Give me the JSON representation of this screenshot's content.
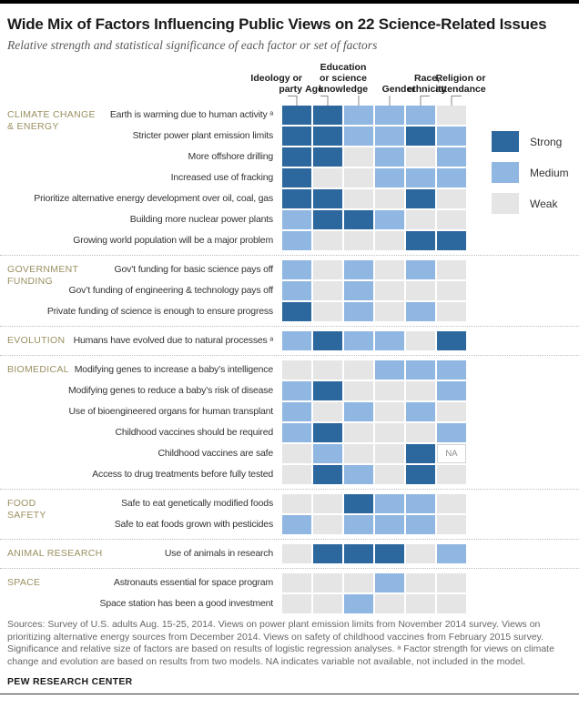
{
  "page": {
    "title": "Wide Mix of Factors Influencing Public Views on 22 Science-Related Issues",
    "subtitle": "Relative strength and statistical significance of each factor or set of factors"
  },
  "colors": {
    "strong": "#2C679E",
    "medium": "#90B6E2",
    "weak": "#E5E5E5",
    "na_bg": "#FFFFFF",
    "na_border": "#D2D2D2",
    "na_text": "#8A8A8A",
    "section_label": "#9A9060"
  },
  "legend": {
    "items": [
      {
        "label": "Strong",
        "color": "#2C679E"
      },
      {
        "label": "Medium",
        "color": "#90B6E2"
      },
      {
        "label": "Weak",
        "color": "#E5E5E5"
      }
    ]
  },
  "chart_data": {
    "type": "heatmap",
    "title": "Wide Mix of Factors Influencing Public Views on 22 Science-Related Issues",
    "subtitle": "Relative strength and statistical significance of each factor or set of factors",
    "scale": [
      "Strong",
      "Medium",
      "Weak",
      "NA"
    ],
    "columns": [
      {
        "label": "Ideology or party",
        "lines": [
          "Ideology or",
          "party"
        ]
      },
      {
        "label": "Age",
        "lines": [
          "Age"
        ]
      },
      {
        "label": "Education or science knowledge",
        "lines": [
          "Education",
          "or science",
          "knowledge"
        ]
      },
      {
        "label": "Gender",
        "lines": [
          "Gender"
        ]
      },
      {
        "label": "Race, ethnicity",
        "lines": [
          "Race,",
          "ethnicity"
        ]
      },
      {
        "label": "Religion or attendance",
        "lines": [
          "Religion or",
          "attendance"
        ]
      }
    ],
    "sections": [
      {
        "label": "CLIMATE CHANGE & ENERGY",
        "label_lines": [
          "CLIMATE CHANGE",
          "& ENERGY"
        ],
        "rows": [
          {
            "label": "Earth is warming due to human activity ᵃ",
            "values": [
              "Strong",
              "Strong",
              "Medium",
              "Medium",
              "Medium",
              "Weak"
            ]
          },
          {
            "label": "Stricter power plant emission limits",
            "values": [
              "Strong",
              "Strong",
              "Medium",
              "Medium",
              "Strong",
              "Medium"
            ]
          },
          {
            "label": "More offshore drilling",
            "values": [
              "Strong",
              "Strong",
              "Weak",
              "Medium",
              "Weak",
              "Medium"
            ]
          },
          {
            "label": "Increased use of fracking",
            "values": [
              "Strong",
              "Weak",
              "Weak",
              "Medium",
              "Medium",
              "Medium"
            ]
          },
          {
            "label": "Prioritize alternative energy development over oil, coal, gas",
            "values": [
              "Strong",
              "Strong",
              "Weak",
              "Weak",
              "Strong",
              "Weak"
            ]
          },
          {
            "label": "Building more nuclear power plants",
            "values": [
              "Medium",
              "Strong",
              "Strong",
              "Medium",
              "Weak",
              "Weak"
            ]
          },
          {
            "label": "Growing world population will be a major problem",
            "values": [
              "Medium",
              "Weak",
              "Weak",
              "Weak",
              "Strong",
              "Strong"
            ]
          }
        ]
      },
      {
        "label": "GOVERNMENT FUNDING",
        "label_lines": [
          "GOVERNMENT",
          "FUNDING"
        ],
        "rows": [
          {
            "label": "Gov’t funding for basic science pays off",
            "values": [
              "Medium",
              "Weak",
              "Medium",
              "Weak",
              "Medium",
              "Weak"
            ]
          },
          {
            "label": "Gov’t funding of engineering & technology pays off",
            "values": [
              "Medium",
              "Weak",
              "Medium",
              "Weak",
              "Weak",
              "Weak"
            ]
          },
          {
            "label": "Private funding of science is enough to ensure progress",
            "values": [
              "Strong",
              "Weak",
              "Medium",
              "Weak",
              "Medium",
              "Weak"
            ]
          }
        ]
      },
      {
        "label": "EVOLUTION",
        "label_lines": [
          "EVOLUTION"
        ],
        "rows": [
          {
            "label": "Humans have evolved due to natural processes ᵃ",
            "values": [
              "Medium",
              "Strong",
              "Medium",
              "Medium",
              "Weak",
              "Strong"
            ]
          }
        ]
      },
      {
        "label": "BIOMEDICAL",
        "label_lines": [
          "BIOMEDICAL"
        ],
        "rows": [
          {
            "label": "Modifying genes to increase a baby’s intelligence",
            "values": [
              "Weak",
              "Weak",
              "Weak",
              "Medium",
              "Medium",
              "Medium"
            ]
          },
          {
            "label": "Modifying genes to reduce a baby’s risk of disease",
            "values": [
              "Medium",
              "Strong",
              "Weak",
              "Weak",
              "Weak",
              "Medium"
            ]
          },
          {
            "label": "Use of bioengineered organs for human transplant",
            "values": [
              "Medium",
              "Weak",
              "Medium",
              "Weak",
              "Medium",
              "Weak"
            ]
          },
          {
            "label": "Childhood vaccines should be required",
            "values": [
              "Medium",
              "Strong",
              "Weak",
              "Weak",
              "Weak",
              "Medium"
            ]
          },
          {
            "label": "Childhood vaccines are safe",
            "values": [
              "Weak",
              "Medium",
              "Weak",
              "Weak",
              "Strong",
              "NA"
            ]
          },
          {
            "label": "Access to drug treatments before fully tested",
            "values": [
              "Weak",
              "Strong",
              "Medium",
              "Weak",
              "Strong",
              "Weak"
            ]
          }
        ]
      },
      {
        "label": "FOOD SAFETY",
        "label_lines": [
          "FOOD",
          "SAFETY"
        ],
        "rows": [
          {
            "label": "Safe to eat genetically modified foods",
            "values": [
              "Weak",
              "Weak",
              "Strong",
              "Medium",
              "Medium",
              "Weak"
            ]
          },
          {
            "label": "Safe to eat foods grown with pesticides",
            "values": [
              "Medium",
              "Weak",
              "Medium",
              "Medium",
              "Medium",
              "Weak"
            ]
          }
        ]
      },
      {
        "label": "ANIMAL RESEARCH",
        "label_lines": [
          "ANIMAL RESEARCH"
        ],
        "rows": [
          {
            "label": "Use of animals in research",
            "values": [
              "Weak",
              "Strong",
              "Strong",
              "Strong",
              "Weak",
              "Medium"
            ]
          }
        ]
      },
      {
        "label": "SPACE",
        "label_lines": [
          "SPACE"
        ],
        "rows": [
          {
            "label": "Astronauts essential for space program",
            "values": [
              "Weak",
              "Weak",
              "Weak",
              "Medium",
              "Weak",
              "Weak"
            ]
          },
          {
            "label": "Space station has been a good investment",
            "values": [
              "Weak",
              "Weak",
              "Medium",
              "Weak",
              "Weak",
              "Weak"
            ]
          }
        ]
      }
    ],
    "na_label": "NA"
  },
  "footer": {
    "sources": "Sources: Survey of U.S. adults Aug. 15-25, 2014. Views on power plant emission limits from November 2014 survey. Views on prioritizing alternative energy sources from December 2014. Views on safety of childhood vaccines from February 2015 survey. Significance and relative size of factors are based on results of logistic regression analyses. ᵃ Factor strength for views on climate change and evolution are based on results from two models. NA indicates variable not available, not included in the model.",
    "brand": "PEW RESEARCH CENTER"
  }
}
